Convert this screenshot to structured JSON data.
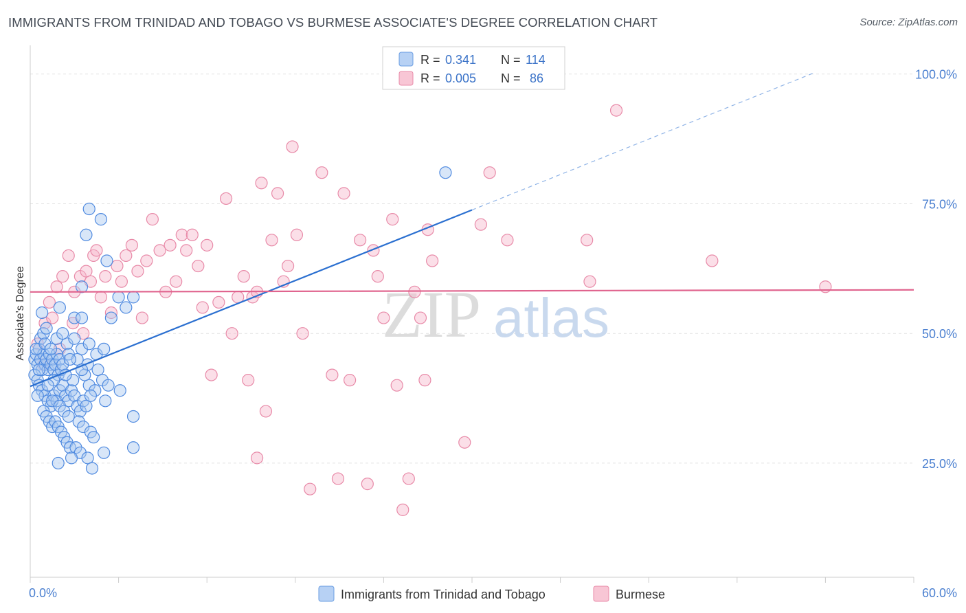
{
  "title": "IMMIGRANTS FROM TRINIDAD AND TOBAGO VS BURMESE ASSOCIATE'S DEGREE CORRELATION CHART",
  "source": "Source: ZipAtlas.com",
  "watermark": {
    "zip": "ZIP",
    "atlas": "atlas"
  },
  "colors": {
    "blue_fill": "#a9c8f0",
    "blue_stroke": "#4f8ae0",
    "blue_line": "#2a6fd0",
    "pink_fill": "#f6b8cb",
    "pink_stroke": "#e88aa8",
    "pink_line": "#e0648e",
    "tick_text": "#4a7fd0",
    "grid": "#e2e2e2"
  },
  "legend": {
    "rows": [
      {
        "r_label": "R =",
        "r_value": "0.341",
        "n_label": "N =",
        "n_value": "114"
      },
      {
        "r_label": "R =",
        "r_value": "0.005",
        "n_label": "N =",
        "n_value": "86"
      }
    ]
  },
  "chart_data": {
    "type": "scatter",
    "title": "IMMIGRANTS FROM TRINIDAD AND TOBAGO VS BURMESE ASSOCIATE'S DEGREE CORRELATION CHART",
    "xlabel": "",
    "ylabel": "Associate's Degree",
    "xlim": [
      0,
      60
    ],
    "ylim": [
      3,
      105
    ],
    "x_tick_labels": [
      "0.0%",
      "60.0%"
    ],
    "y_ticks": [
      25,
      50,
      75,
      100
    ],
    "y_tick_labels": [
      "25.0%",
      "50.0%",
      "75.0%",
      "100.0%"
    ],
    "grid": true,
    "legend_position": "top-center",
    "series": [
      {
        "name": "Immigrants from Trinidad and Tobago",
        "color": "#a9c8f0",
        "R": 0.341,
        "N": 114,
        "trend": {
          "x0": 0,
          "y0": 39.8,
          "x1": 30,
          "y1": 73.8,
          "dashed_to_x": 53.2,
          "dashed_to_y": 100.2
        },
        "points": [
          [
            0.3,
            45
          ],
          [
            0.4,
            46
          ],
          [
            0.5,
            44
          ],
          [
            0.6,
            47
          ],
          [
            0.7,
            45
          ],
          [
            0.8,
            43
          ],
          [
            0.9,
            46
          ],
          [
            1.0,
            44
          ],
          [
            1.1,
            45
          ],
          [
            1.2,
            43
          ],
          [
            1.3,
            46
          ],
          [
            1.4,
            44
          ],
          [
            1.5,
            45
          ],
          [
            1.6,
            43
          ],
          [
            1.7,
            44
          ],
          [
            1.8,
            46
          ],
          [
            1.9,
            42
          ],
          [
            2.0,
            45
          ],
          [
            2.1,
            43
          ],
          [
            2.2,
            44
          ],
          [
            0.3,
            42
          ],
          [
            0.5,
            41
          ],
          [
            0.6,
            40
          ],
          [
            0.8,
            39
          ],
          [
            1.0,
            38
          ],
          [
            1.2,
            37
          ],
          [
            1.4,
            36
          ],
          [
            1.6,
            38
          ],
          [
            1.8,
            37
          ],
          [
            2.0,
            39
          ],
          [
            2.2,
            40
          ],
          [
            2.4,
            38
          ],
          [
            2.6,
            37
          ],
          [
            2.8,
            39
          ],
          [
            3.0,
            38
          ],
          [
            3.2,
            36
          ],
          [
            3.4,
            35
          ],
          [
            3.6,
            37
          ],
          [
            3.8,
            36
          ],
          [
            4.0,
            40
          ],
          [
            0.9,
            35
          ],
          [
            1.1,
            34
          ],
          [
            1.3,
            33
          ],
          [
            1.5,
            32
          ],
          [
            1.7,
            33
          ],
          [
            1.9,
            32
          ],
          [
            2.1,
            31
          ],
          [
            2.3,
            30
          ],
          [
            2.5,
            29
          ],
          [
            2.7,
            28
          ],
          [
            0.7,
            49
          ],
          [
            0.9,
            50
          ],
          [
            1.1,
            51
          ],
          [
            1.8,
            49
          ],
          [
            2.5,
            48
          ],
          [
            3.0,
            49
          ],
          [
            3.5,
            47
          ],
          [
            4.0,
            48
          ],
          [
            4.5,
            46
          ],
          [
            5.0,
            47
          ],
          [
            0.8,
            54
          ],
          [
            2.0,
            55
          ],
          [
            3.0,
            53
          ],
          [
            3.5,
            53
          ],
          [
            5.5,
            53
          ],
          [
            6.0,
            57
          ],
          [
            7.0,
            57
          ],
          [
            6.5,
            55
          ],
          [
            3.5,
            59
          ],
          [
            5.2,
            64
          ],
          [
            3.8,
            69
          ],
          [
            4.0,
            74
          ],
          [
            4.8,
            72
          ],
          [
            28.2,
            81
          ],
          [
            1.5,
            37
          ],
          [
            2.0,
            36
          ],
          [
            2.3,
            35
          ],
          [
            2.6,
            34
          ],
          [
            3.3,
            33
          ],
          [
            3.6,
            32
          ],
          [
            4.1,
            31
          ],
          [
            4.3,
            30
          ],
          [
            3.1,
            28
          ],
          [
            3.4,
            27
          ],
          [
            3.9,
            26
          ],
          [
            4.2,
            24
          ],
          [
            5.0,
            27
          ],
          [
            1.9,
            25
          ],
          [
            2.8,
            26
          ],
          [
            7.0,
            28
          ],
          [
            7.0,
            34
          ],
          [
            5.1,
            37
          ],
          [
            4.4,
            39
          ],
          [
            3.7,
            42
          ],
          [
            2.9,
            41
          ],
          [
            2.4,
            42
          ],
          [
            1.6,
            41
          ],
          [
            1.2,
            40
          ],
          [
            0.5,
            38
          ],
          [
            0.4,
            47
          ],
          [
            1.0,
            48
          ],
          [
            2.6,
            46
          ],
          [
            3.2,
            45
          ],
          [
            3.9,
            44
          ],
          [
            4.6,
            43
          ],
          [
            4.9,
            41
          ],
          [
            5.3,
            40
          ],
          [
            6.1,
            39
          ],
          [
            1.4,
            47
          ],
          [
            2.2,
            50
          ],
          [
            2.7,
            45
          ],
          [
            3.5,
            43
          ],
          [
            4.1,
            38
          ],
          [
            0.6,
            43
          ]
        ]
      },
      {
        "name": "Burmese",
        "color": "#f6b8cb",
        "R": 0.005,
        "N": 86,
        "trend": {
          "x0": 0,
          "y0": 58.0,
          "x1": 60,
          "y1": 58.4
        },
        "points": [
          [
            1.0,
            52
          ],
          [
            1.3,
            56
          ],
          [
            1.8,
            59
          ],
          [
            2.2,
            61
          ],
          [
            2.6,
            65
          ],
          [
            3.0,
            58
          ],
          [
            3.4,
            61
          ],
          [
            3.8,
            62
          ],
          [
            4.1,
            60
          ],
          [
            4.3,
            65
          ],
          [
            4.5,
            66
          ],
          [
            4.8,
            57
          ],
          [
            5.1,
            61
          ],
          [
            5.5,
            54
          ],
          [
            5.9,
            63
          ],
          [
            6.2,
            60
          ],
          [
            6.5,
            65
          ],
          [
            6.9,
            67
          ],
          [
            7.3,
            62
          ],
          [
            7.6,
            53
          ],
          [
            7.9,
            64
          ],
          [
            8.3,
            72
          ],
          [
            8.8,
            66
          ],
          [
            9.2,
            58
          ],
          [
            9.5,
            67
          ],
          [
            9.9,
            60
          ],
          [
            10.3,
            69
          ],
          [
            10.6,
            66
          ],
          [
            11.0,
            69
          ],
          [
            11.4,
            63
          ],
          [
            11.7,
            55
          ],
          [
            12.0,
            67
          ],
          [
            12.3,
            42
          ],
          [
            12.8,
            56
          ],
          [
            13.3,
            76
          ],
          [
            13.7,
            50
          ],
          [
            14.1,
            57
          ],
          [
            14.5,
            61
          ],
          [
            14.8,
            41
          ],
          [
            15.1,
            57
          ],
          [
            15.4,
            58
          ],
          [
            15.7,
            79
          ],
          [
            16.0,
            35
          ],
          [
            16.4,
            68
          ],
          [
            16.8,
            77
          ],
          [
            17.2,
            60
          ],
          [
            17.5,
            63
          ],
          [
            17.8,
            86
          ],
          [
            18.1,
            69
          ],
          [
            18.5,
            50
          ],
          [
            19.0,
            20
          ],
          [
            19.8,
            81
          ],
          [
            20.5,
            42
          ],
          [
            20.9,
            22
          ],
          [
            21.3,
            77
          ],
          [
            21.7,
            41
          ],
          [
            22.4,
            68
          ],
          [
            22.9,
            21
          ],
          [
            23.3,
            66
          ],
          [
            23.6,
            61
          ],
          [
            24.0,
            53
          ],
          [
            24.6,
            72
          ],
          [
            24.9,
            40
          ],
          [
            25.3,
            16
          ],
          [
            25.7,
            22
          ],
          [
            26.1,
            58
          ],
          [
            26.5,
            53
          ],
          [
            26.8,
            41
          ],
          [
            27.0,
            70
          ],
          [
            27.3,
            64
          ],
          [
            29.5,
            29
          ],
          [
            30.6,
            71
          ],
          [
            31.2,
            81
          ],
          [
            32.4,
            68
          ],
          [
            37.8,
            68
          ],
          [
            38.0,
            60
          ],
          [
            39.8,
            93
          ],
          [
            46.3,
            64
          ],
          [
            54.0,
            59
          ],
          [
            0.5,
            48
          ],
          [
            0.9,
            44
          ],
          [
            1.5,
            53
          ],
          [
            2.0,
            47
          ],
          [
            2.9,
            52
          ],
          [
            3.6,
            50
          ],
          [
            15.4,
            26
          ]
        ]
      }
    ]
  },
  "bottom_legend": {
    "items": [
      {
        "label": "Immigrants from Trinidad and Tobago"
      },
      {
        "label": "Burmese"
      }
    ]
  }
}
